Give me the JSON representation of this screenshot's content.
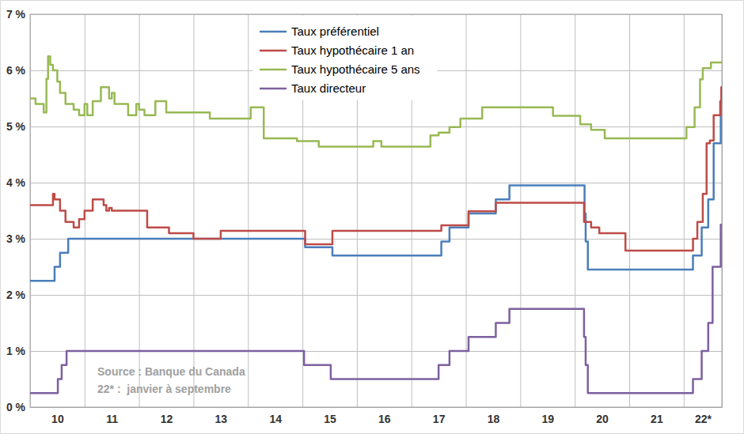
{
  "chart_data": {
    "type": "line",
    "line_style": "step",
    "grid": true,
    "legend": "top",
    "xlim": [
      10,
      22.7
    ],
    "xticks": [
      {
        "value": 10,
        "label": "10"
      },
      {
        "value": 11,
        "label": "11"
      },
      {
        "value": 12,
        "label": "12"
      },
      {
        "value": 13,
        "label": "13"
      },
      {
        "value": 14,
        "label": "14"
      },
      {
        "value": 15,
        "label": "15"
      },
      {
        "value": 16,
        "label": "16"
      },
      {
        "value": 17,
        "label": "17"
      },
      {
        "value": 18,
        "label": "18"
      },
      {
        "value": 19,
        "label": "19"
      },
      {
        "value": 20,
        "label": "20"
      },
      {
        "value": 21,
        "label": "21"
      },
      {
        "value": 22,
        "label": "22*"
      }
    ],
    "ylim": [
      0,
      7
    ],
    "yticks": [
      {
        "value": 0,
        "label": "0 %"
      },
      {
        "value": 1,
        "label": "1 %"
      },
      {
        "value": 2,
        "label": "2 %"
      },
      {
        "value": 3,
        "label": "3 %"
      },
      {
        "value": 4,
        "label": "4 %"
      },
      {
        "value": 5,
        "label": "5 %"
      },
      {
        "value": 6,
        "label": "6 %"
      },
      {
        "value": 7,
        "label": "7 %"
      }
    ],
    "annotations": [
      "Source : Banque du Canada",
      "22* :  janvier à septembre"
    ],
    "series": [
      {
        "name": "Taux préférentiel",
        "color": "#4a7ebb",
        "x": [
          10,
          10.45,
          10.55,
          10.7,
          15.05,
          15.55,
          17.55,
          17.7,
          18.05,
          18.55,
          18.8,
          20.18,
          20.2,
          20.24,
          22.17,
          22.33,
          22.45,
          22.55,
          22.68,
          22.7
        ],
        "values": [
          2.25,
          2.5,
          2.75,
          3.0,
          2.85,
          2.7,
          2.95,
          3.2,
          3.45,
          3.7,
          3.95,
          3.45,
          2.95,
          2.45,
          2.7,
          3.2,
          3.7,
          4.7,
          5.45,
          5.45
        ]
      },
      {
        "name": "Taux hypothécaire 1 an",
        "color": "#be4b48",
        "x": [
          10,
          10.4,
          10.42,
          10.45,
          10.55,
          10.65,
          10.8,
          10.9,
          11.0,
          11.15,
          11.35,
          11.4,
          11.45,
          11.5,
          12.15,
          12.55,
          13.0,
          13.5,
          15.05,
          15.55,
          17.55,
          18.05,
          18.55,
          20.17,
          20.3,
          20.45,
          20.93,
          22.17,
          22.25,
          22.35,
          22.42,
          22.48,
          22.55,
          22.67,
          22.69,
          22.7
        ],
        "values": [
          3.6,
          3.6,
          3.8,
          3.7,
          3.5,
          3.3,
          3.2,
          3.35,
          3.5,
          3.7,
          3.6,
          3.5,
          3.55,
          3.5,
          3.2,
          3.1,
          3.0,
          3.14,
          2.9,
          3.14,
          3.24,
          3.49,
          3.64,
          3.3,
          3.2,
          3.1,
          2.79,
          3.0,
          3.3,
          3.8,
          4.7,
          4.75,
          5.2,
          5.45,
          5.7,
          5.7
        ]
      },
      {
        "name": "Taux hypothécaire 5 ans",
        "color": "#98b954",
        "x": [
          10,
          10.1,
          10.25,
          10.3,
          10.33,
          10.37,
          10.42,
          10.5,
          10.55,
          10.65,
          10.8,
          10.9,
          11.0,
          11.05,
          11.15,
          11.3,
          11.45,
          11.5,
          11.55,
          11.8,
          11.95,
          12.0,
          12.1,
          12.3,
          12.5,
          13.3,
          14.05,
          14.29,
          14.9,
          15.3,
          16.3,
          16.45,
          17.35,
          17.5,
          17.7,
          17.9,
          18.3,
          19.6,
          20.1,
          20.3,
          20.55,
          22.05,
          22.2,
          22.3,
          22.35,
          22.5,
          22.7
        ],
        "values": [
          5.5,
          5.4,
          5.25,
          5.85,
          6.25,
          6.1,
          6.0,
          5.8,
          5.6,
          5.4,
          5.3,
          5.2,
          5.4,
          5.2,
          5.45,
          5.7,
          5.5,
          5.6,
          5.4,
          5.2,
          5.4,
          5.3,
          5.2,
          5.45,
          5.25,
          5.14,
          5.34,
          4.79,
          4.74,
          4.64,
          4.74,
          4.64,
          4.84,
          4.89,
          4.99,
          5.14,
          5.34,
          5.19,
          5.04,
          4.94,
          4.79,
          4.99,
          5.34,
          5.84,
          6.04,
          6.14,
          6.14
        ]
      },
      {
        "name": "Taux directeur",
        "color": "#7d60a0",
        "x": [
          10,
          10.51,
          10.58,
          10.67,
          15.03,
          15.52,
          17.5,
          17.7,
          18.05,
          18.55,
          18.8,
          20.17,
          20.2,
          20.24,
          22.17,
          22.33,
          22.45,
          22.53,
          22.68,
          22.7
        ],
        "values": [
          0.25,
          0.5,
          0.75,
          1.0,
          0.75,
          0.5,
          0.75,
          1.0,
          1.25,
          1.5,
          1.75,
          1.25,
          0.75,
          0.25,
          0.5,
          1.0,
          1.5,
          2.5,
          3.25,
          3.25
        ]
      }
    ]
  }
}
